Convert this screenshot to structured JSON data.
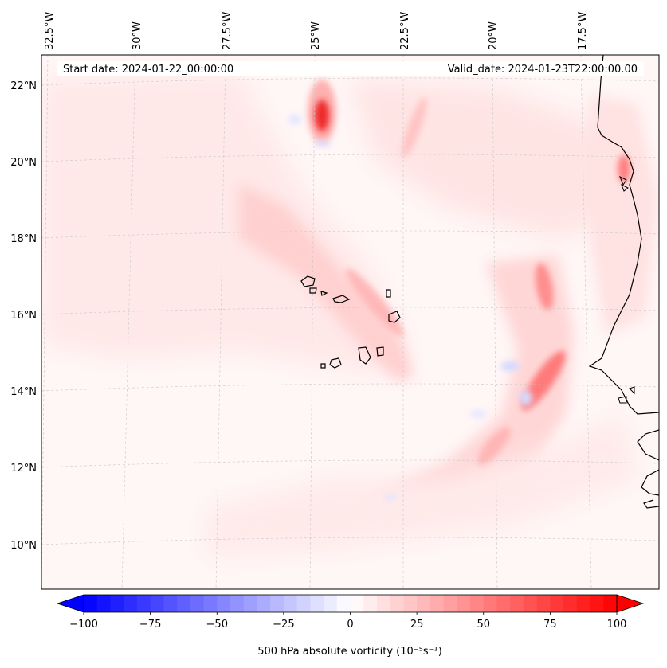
{
  "header": {
    "start_date": "Start date: 2024-01-22_00:00:00",
    "valid_date": "Valid_date: 2024-01-23T22:00:00.00"
  },
  "axes": {
    "lon_labels": [
      "32.5°W",
      "30°W",
      "27.5°W",
      "25°W",
      "22.5°W",
      "20°W",
      "17.5°W"
    ],
    "lat_labels": [
      "22°N",
      "20°N",
      "18°N",
      "16°N",
      "14°N",
      "12°N",
      "10°N"
    ]
  },
  "colorbar": {
    "label": "500 hPa absolute vorticity (10⁻⁵s⁻¹)",
    "min": -100,
    "max": 100,
    "step": 5,
    "ticks": [
      "−100",
      "−75",
      "−50",
      "−25",
      "0",
      "25",
      "50",
      "75",
      "100"
    ],
    "colors": {
      "negative": "#0000ff",
      "zero": "#ffffff",
      "positive": "#ff0000"
    }
  },
  "field_features": [
    {
      "name": "north-vorticity-max",
      "value": 80
    },
    {
      "name": "central-band",
      "value": 20
    },
    {
      "name": "east-band-north",
      "value": 45
    },
    {
      "name": "east-band-south",
      "value": 55
    },
    {
      "name": "coastal-max",
      "value": 40
    },
    {
      "name": "negative-patch",
      "value": -25
    }
  ]
}
